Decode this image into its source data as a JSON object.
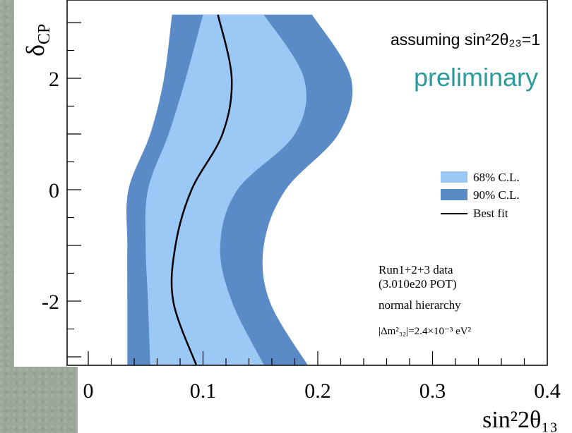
{
  "chart_data": {
    "type": "area",
    "xlabel": "sin²2θ₁₃",
    "ylabel": "δ",
    "ylabel_sub": "CP",
    "xlim": [
      0,
      0.4
    ],
    "ylim": [
      -3.1416,
      3.1416
    ],
    "x_ticks": [
      {
        "value": 0,
        "label": "0"
      },
      {
        "value": 0.1,
        "label": "0.1"
      },
      {
        "value": 0.2,
        "label": "0.2"
      },
      {
        "value": 0.3,
        "label": "0.3"
      },
      {
        "value": 0.4,
        "label": "0.4"
      }
    ],
    "y_ticks": [
      {
        "value": 2,
        "label": "2"
      },
      {
        "value": 0,
        "label": "0"
      },
      {
        "value": -2,
        "label": "-2"
      }
    ],
    "delta_cp": [
      3.1416,
      2.0,
      1.0,
      0.0,
      -1.0,
      -2.0,
      -3.1416
    ],
    "series": [
      {
        "name": "90% C.L.",
        "color": "#5b8bc6",
        "lower": [
          0.073,
          0.066,
          0.054,
          0.035,
          0.034,
          0.034,
          0.034
        ],
        "upper": [
          0.195,
          0.229,
          0.218,
          0.172,
          0.153,
          0.158,
          0.191
        ]
      },
      {
        "name": "68% C.L.",
        "color": "#9cc8f6",
        "lower": [
          0.1,
          0.085,
          0.07,
          0.052,
          0.05,
          0.052,
          0.054
        ],
        "upper": [
          0.153,
          0.188,
          0.18,
          0.13,
          0.115,
          0.125,
          0.153
        ]
      },
      {
        "name": "Best fit",
        "color": "#000000",
        "x": [
          0.113,
          0.125,
          0.117,
          0.09,
          0.076,
          0.074,
          0.094
        ]
      }
    ],
    "legend_position": "right",
    "annotations": {
      "assumption": "assuming sin²2θ₂₃=1",
      "status": "preliminary",
      "run_data": "Run1+2+3 data",
      "pot": "(3.010e20 POT)",
      "hierarchy": "normal hierarchy",
      "dm2": "|Δm²₃₂|=2.4×10⁻³ eV²"
    },
    "colors": {
      "status": "#2a9a9a"
    }
  }
}
